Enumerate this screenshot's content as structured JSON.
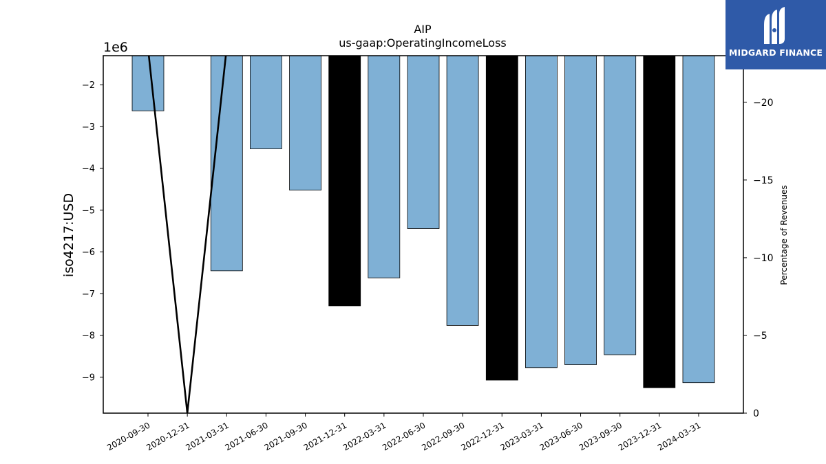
{
  "brand": {
    "name": "MIDGARD FINANCE",
    "color": "#2f5aa8"
  },
  "chart_data": {
    "type": "bar",
    "title": "AIP",
    "subtitle": "us-gaap:OperatingIncomeLoss",
    "ylabel": "iso4217:USD",
    "y_offset_text": "1e6",
    "y2label": "Percentage of Revenues",
    "categories": [
      "2020-09-30",
      "2020-12-31",
      "2021-03-31",
      "2021-06-30",
      "2021-09-30",
      "2021-12-31",
      "2022-03-31",
      "2022-06-30",
      "2022-09-30",
      "2022-12-31",
      "2023-03-31",
      "2023-06-30",
      "2023-09-30",
      "2023-12-31",
      "2024-03-31"
    ],
    "values": [
      -2.62,
      null,
      -6.45,
      -3.53,
      -4.52,
      -7.29,
      -6.62,
      -5.44,
      -7.76,
      -9.07,
      -8.77,
      -8.7,
      -8.46,
      -9.25,
      -9.13
    ],
    "annual": [
      false,
      false,
      false,
      false,
      false,
      true,
      false,
      false,
      false,
      true,
      false,
      false,
      false,
      true,
      false
    ],
    "bar_colors": {
      "quarterly": "#7fb0d5",
      "annual": "#000000"
    },
    "ylim": [
      -9.86,
      -1.3
    ],
    "yticks": [
      -2,
      -3,
      -4,
      -5,
      -6,
      -7,
      -8,
      -9
    ],
    "y2lim": [
      0,
      -23
    ],
    "y2ticks": [
      0,
      -5,
      -10,
      -15,
      -20
    ],
    "line_series": {
      "name": "Percentage of Revenues",
      "color": "#000000",
      "points": [
        {
          "category": "2020-09-30",
          "value": -23.5
        },
        {
          "category": "2020-12-31",
          "value": 0
        },
        {
          "category": "2021-03-31",
          "value": -23.5
        }
      ]
    },
    "grid": false
  }
}
